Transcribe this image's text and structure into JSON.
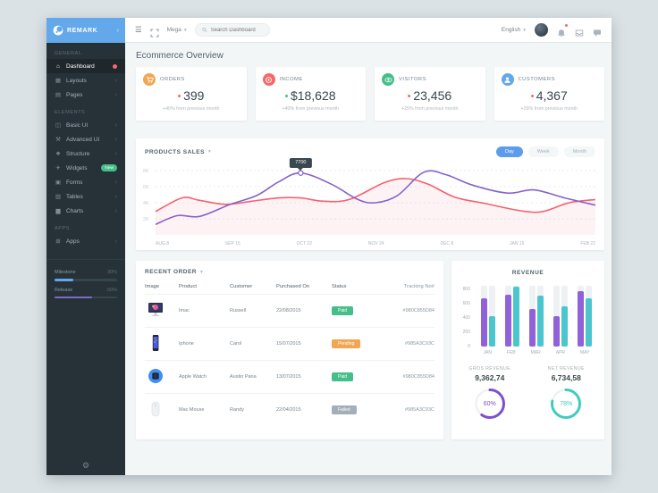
{
  "app": {
    "logo_text": "REMARK"
  },
  "navbar": {
    "menu": "Mega",
    "search_placeholder": "Search Dashboard",
    "language": "English"
  },
  "page": {
    "title": "Ecommerce Overview"
  },
  "sidebar": {
    "sections": [
      {
        "label": "GENERAL",
        "items": [
          {
            "label": "Dashboard",
            "icon": "dashboard",
            "active": true,
            "badge": "dot"
          },
          {
            "label": "Layouts",
            "icon": "layouts",
            "expandable": true
          },
          {
            "label": "Pages",
            "icon": "pages",
            "expandable": true
          }
        ]
      },
      {
        "label": "Elements",
        "items": [
          {
            "label": "Basic UI",
            "icon": "basic-ui",
            "expandable": true
          },
          {
            "label": "Advanced UI",
            "icon": "advanced-ui",
            "expandable": true
          },
          {
            "label": "Structure",
            "icon": "structure",
            "expandable": true
          },
          {
            "label": "Widgets",
            "icon": "widgets",
            "badge": "New"
          },
          {
            "label": "Forms",
            "icon": "forms",
            "expandable": true
          },
          {
            "label": "Tables",
            "icon": "tables",
            "expandable": true
          },
          {
            "label": "Charts",
            "icon": "charts",
            "expandable": true
          }
        ]
      },
      {
        "label": "APPS",
        "items": [
          {
            "label": "Apps",
            "icon": "apps",
            "expandable": true
          }
        ]
      }
    ],
    "progress": [
      {
        "label": "Milestone",
        "value": "30%",
        "pct": 30,
        "color": "#62a8ea"
      },
      {
        "label": "Release",
        "value": "60%",
        "pct": 60,
        "color": "#7e6bc9"
      }
    ]
  },
  "stats": [
    {
      "label": "ORDERS",
      "value": "399",
      "delta": "+40% from previous month",
      "icon": "cart",
      "color": "#f2a654",
      "dot_color": "#f96868"
    },
    {
      "label": "INCOME",
      "value": "$18,628",
      "delta": "+40% from previous month",
      "icon": "ring",
      "color": "#f96868",
      "dot_color": "#46be8a"
    },
    {
      "label": "VISITORS",
      "value": "23,456",
      "delta": "+25% from previous month",
      "icon": "eye",
      "color": "#46be8a",
      "dot_color": "#f96868"
    },
    {
      "label": "CUSTOMERS",
      "value": "4,367",
      "delta": "+29% from previous month",
      "icon": "user",
      "color": "#62a8ea",
      "dot_color": "#f96868"
    }
  ],
  "products_sales": {
    "title": "PRODUCTS SALES",
    "range_buttons": [
      "Day",
      "Week",
      "Month"
    ],
    "active_button": "Day",
    "chart_data": {
      "type": "line",
      "x_labels": [
        "AUG 8",
        "SEP 15",
        "OCT 22",
        "NOV 24",
        "DEC 8",
        "JAN 15",
        "FEB 22"
      ],
      "y_ticks_k": [
        8,
        6,
        4,
        2
      ],
      "ylim_k": [
        0,
        8
      ],
      "grid": "dashed-horizontal",
      "series": [
        {
          "name": "series-purple",
          "color": "#8463ca",
          "points": [
            [
              0,
              1.3
            ],
            [
              5,
              2.4
            ],
            [
              10,
              2.3
            ],
            [
              17,
              3.8
            ],
            [
              23,
              4.9
            ],
            [
              28,
              6.6
            ],
            [
              33,
              7.7
            ],
            [
              40,
              6.3
            ],
            [
              46,
              4.4
            ],
            [
              50,
              4.0
            ],
            [
              55,
              4.9
            ],
            [
              61,
              7.8
            ],
            [
              66,
              7.5
            ],
            [
              72,
              6.2
            ],
            [
              80,
              5.2
            ],
            [
              86,
              5.6
            ],
            [
              93,
              4.6
            ],
            [
              100,
              3.7
            ]
          ]
        },
        {
          "name": "series-pink",
          "color": "#f4626f",
          "fill": "rgba(244,98,111,0.08)",
          "points": [
            [
              0,
              2.9
            ],
            [
              6,
              4.6
            ],
            [
              10,
              4.3
            ],
            [
              16,
              3.8
            ],
            [
              22,
              4.2
            ],
            [
              28,
              4.6
            ],
            [
              33,
              4.6
            ],
            [
              38,
              4.2
            ],
            [
              44,
              4.4
            ],
            [
              52,
              6.5
            ],
            [
              57,
              7.0
            ],
            [
              62,
              6.3
            ],
            [
              68,
              4.7
            ],
            [
              75,
              3.9
            ],
            [
              83,
              3.0
            ],
            [
              88,
              2.9
            ],
            [
              94,
              4.0
            ],
            [
              100,
              4.4
            ]
          ]
        }
      ],
      "tooltip": {
        "text": "7700",
        "series": 0,
        "point_index": 6
      }
    }
  },
  "recent_orders": {
    "title": "RECENT ORDER",
    "columns": [
      "Image",
      "Product",
      "Customer",
      "Purchased On",
      "Status",
      "Tracking No#"
    ],
    "rows": [
      {
        "image": "imac",
        "product": "Imac",
        "customer": "Russell",
        "purchased": "22/08/2015",
        "status": "Paid",
        "status_color": "#46be8a",
        "tracking": "#980C855D84"
      },
      {
        "image": "iphone",
        "product": "Iphone",
        "customer": "Carol",
        "purchased": "15/07/2015",
        "status": "Pending",
        "status_color": "#f2a654",
        "tracking": "#985A3C93C"
      },
      {
        "image": "watch",
        "product": "Apple Watch",
        "customer": "Austin Pana",
        "purchased": "13/07/2015",
        "status": "Paid",
        "status_color": "#46be8a",
        "tracking": "#980C855D84"
      },
      {
        "image": "mouse",
        "product": "Mac Mouse",
        "customer": "Randy",
        "purchased": "22/04/2015",
        "status": "Failed",
        "status_color": "#a3afb7",
        "tracking": "#985A3C93C"
      }
    ]
  },
  "revenue": {
    "chart_data": {
      "type": "bar",
      "title": "REVENUE",
      "categories": [
        "JAN",
        "FEB",
        "MAR",
        "APR",
        "MAY"
      ],
      "y_ticks": [
        800,
        600,
        400,
        200,
        0
      ],
      "ylim": [
        0,
        850
      ],
      "series": [
        {
          "name": "gross",
          "color": "#9061d9",
          "values": [
            680,
            730,
            530,
            430,
            780
          ]
        },
        {
          "name": "net",
          "color": "#4bc5ce",
          "values": [
            420,
            840,
            710,
            560,
            670
          ]
        }
      ]
    },
    "summary": [
      {
        "label": "GROS REVENUE",
        "value": "9,362,74",
        "pct": 60,
        "pct_label": "60%",
        "color": "#7c51d1"
      },
      {
        "label": "NET REVENUE",
        "value": "6,734,58",
        "pct": 78,
        "pct_label": "78%",
        "color": "#3fccbe"
      }
    ]
  }
}
